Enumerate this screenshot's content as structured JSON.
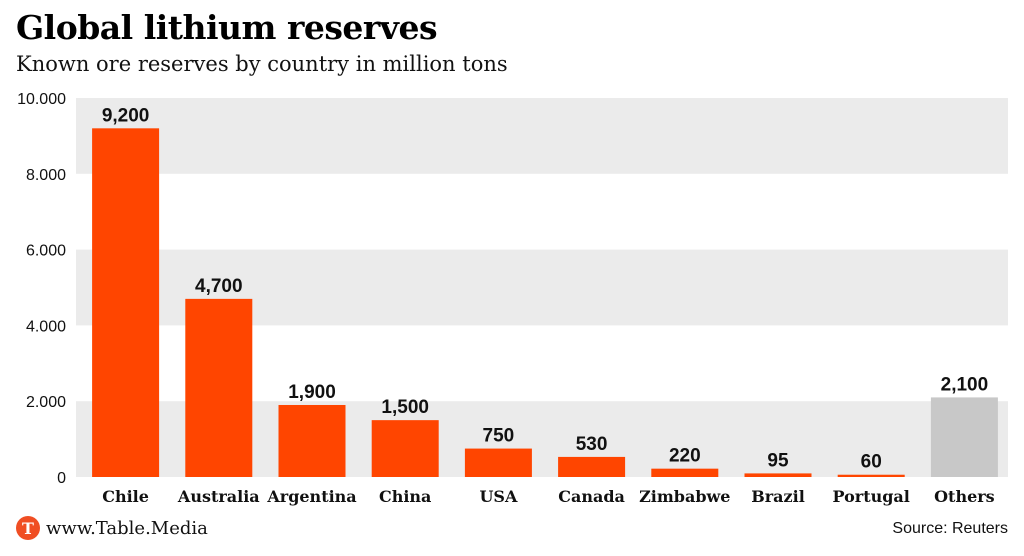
{
  "header": {
    "title": "Global lithium reserves",
    "subtitle": "Known ore reserves by country in million tons"
  },
  "footer": {
    "brand_text": "www.Table.Media",
    "brand_logo_letter": "T",
    "source": "Source: Reuters"
  },
  "colors": {
    "bar": "#ff4500",
    "bar_others": "#c8c8c8",
    "band": "#ebebeb",
    "brand": "#f04e23"
  },
  "chart_data": {
    "type": "bar",
    "categories": [
      "Chile",
      "Australia",
      "Argentina",
      "China",
      "USA",
      "Canada",
      "Zimbabwe",
      "Brazil",
      "Portugal",
      "Others"
    ],
    "values": [
      9200,
      4700,
      1900,
      1500,
      750,
      530,
      220,
      95,
      60,
      2100
    ],
    "value_labels": [
      "9,200",
      "4,700",
      "1,900",
      "1,500",
      "750",
      "530",
      "220",
      "95",
      "60",
      "2,100"
    ],
    "ylim": [
      0,
      10000
    ],
    "yticks": [
      0,
      2000,
      4000,
      6000,
      8000,
      10000
    ],
    "ytick_labels": [
      "0",
      "2.000",
      "4.000",
      "6.000",
      "8.000",
      "10.000"
    ],
    "grid": "alternating horizontal bands",
    "legend": "none"
  }
}
